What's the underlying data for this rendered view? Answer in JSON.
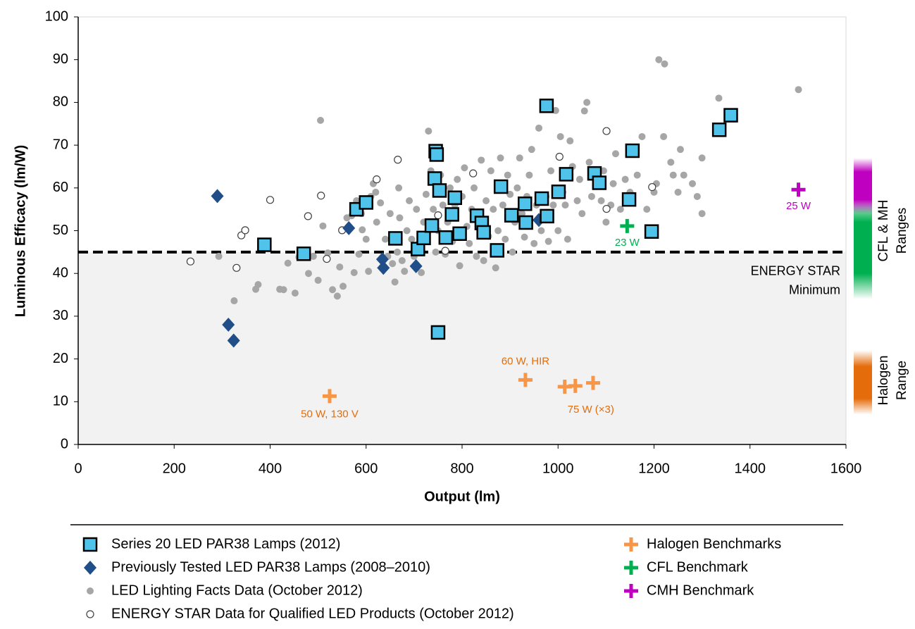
{
  "chart_data": {
    "type": "scatter",
    "x_label": "Output (lm)",
    "y_label": "Luminous Efficacy (lm/W)",
    "xlim": [
      0,
      1600
    ],
    "ylim": [
      0,
      100
    ],
    "xticks": [
      0,
      200,
      400,
      600,
      800,
      1000,
      1200,
      1400,
      1600
    ],
    "yticks": [
      0,
      10,
      20,
      30,
      40,
      50,
      60,
      70,
      80,
      90,
      100
    ],
    "threshold": {
      "value": 45,
      "lines": [
        "ENERGY STAR",
        "Minimum"
      ],
      "shade": "#f2f2f2"
    },
    "range_bands": [
      {
        "color": "#00b050",
        "lo": 34,
        "hi": 58
      },
      {
        "color": "#c000c0",
        "lo": 54,
        "hi": 67
      },
      {
        "color": "#e46c0a",
        "lo": 7,
        "hi": 22
      }
    ],
    "range_labels": [
      {
        "lines": [
          "CFL & MH",
          "Ranges"
        ]
      },
      {
        "lines": [
          "Halogen",
          "Range"
        ]
      }
    ],
    "series": [
      {
        "name": "LED Lighting Facts Data (October 2012)",
        "marker": "circle",
        "color": "#a6a6a6",
        "x": [
          293,
          325,
          375,
          370,
          420,
          428,
          452,
          437,
          460,
          480,
          490,
          500,
          505,
          510,
          520,
          530,
          540,
          545,
          552,
          560,
          570,
          575,
          580,
          585,
          590,
          592,
          600,
          605,
          610,
          615,
          620,
          622,
          630,
          640,
          645,
          650,
          655,
          660,
          665,
          668,
          670,
          675,
          680,
          685,
          690,
          695,
          700,
          705,
          710,
          715,
          720,
          725,
          730,
          735,
          740,
          745,
          750,
          755,
          760,
          765,
          770,
          775,
          780,
          785,
          790,
          795,
          800,
          805,
          810,
          815,
          820,
          825,
          830,
          835,
          840,
          845,
          850,
          855,
          860,
          865,
          870,
          875,
          880,
          885,
          890,
          895,
          900,
          905,
          910,
          915,
          920,
          925,
          930,
          935,
          940,
          945,
          950,
          955,
          960,
          965,
          970,
          975,
          980,
          985,
          990,
          995,
          1000,
          1005,
          1010,
          1015,
          1020,
          1025,
          1030,
          1040,
          1045,
          1050,
          1055,
          1060,
          1065,
          1070,
          1080,
          1090,
          1095,
          1100,
          1110,
          1115,
          1120,
          1130,
          1140,
          1150,
          1165,
          1175,
          1185,
          1200,
          1205,
          1210,
          1222,
          1220,
          1235,
          1240,
          1250,
          1255,
          1262,
          1280,
          1290,
          1300,
          1300,
          1335,
          1501
        ],
        "values": [
          44,
          33.6,
          37.4,
          36.3,
          36.3,
          36.2,
          35.4,
          42.4,
          43.8,
          40,
          44,
          38.4,
          75.8,
          51.1,
          44.8,
          36.2,
          34.7,
          41.5,
          37,
          53,
          53.5,
          40.2,
          57,
          44.5,
          54,
          50.2,
          48,
          40.5,
          58,
          61,
          59,
          52,
          56.5,
          48,
          44,
          54,
          42.3,
          38,
          45,
          60,
          53,
          43,
          40.5,
          50,
          57,
          48,
          44,
          55,
          47,
          40.2,
          52,
          58.5,
          73.3,
          64,
          55,
          45,
          50,
          63,
          56,
          44.5,
          52,
          60,
          47.5,
          56,
          62,
          41.8,
          58,
          64.7,
          51,
          47,
          55,
          60,
          44,
          53,
          66.5,
          43,
          57,
          48.7,
          64,
          55,
          41.3,
          50,
          67,
          56,
          48,
          63,
          58.5,
          45,
          52,
          60,
          67,
          54,
          48.5,
          58,
          63,
          69,
          47,
          56,
          74,
          50,
          79.5,
          58,
          47.5,
          64,
          56,
          78.1,
          50,
          72,
          59,
          56,
          48,
          71,
          65,
          57,
          62,
          54,
          78,
          80,
          66,
          58,
          63,
          57,
          64,
          52,
          56,
          61,
          68,
          55,
          62,
          59,
          63,
          72,
          55,
          59,
          61,
          90,
          89,
          72,
          66,
          63,
          59,
          69,
          63,
          61,
          58,
          67,
          54,
          81,
          83
        ]
      },
      {
        "name": "ENERGY STAR Data for Qualified LED Products (October 2012)",
        "marker": "open-circle",
        "color": "#404040",
        "x": [
          234,
          330,
          340,
          348,
          400,
          479,
          506,
          518,
          550,
          622,
          666,
          765,
          823,
          1003,
          1101,
          1101,
          1196,
          750,
          843
        ],
        "values": [
          42.8,
          41.3,
          48.9,
          50.1,
          57.2,
          53.4,
          58.2,
          43.4,
          50.1,
          62,
          66.6,
          45.3,
          63.4,
          67.3,
          73.3,
          55.1,
          60.2,
          53.6,
          50
        ]
      },
      {
        "name": "Previously Tested  LED PAR38 Lamps (2008–2010)",
        "marker": "diamond",
        "color": "#1f4e89",
        "x": [
          290,
          313,
          324,
          564,
          634,
          636,
          704,
          960
        ],
        "values": [
          58.1,
          28,
          24.3,
          50.6,
          43.3,
          41.3,
          41.7,
          52.5
        ]
      },
      {
        "name": "Series 20 LED PAR38 Lamps (2012)",
        "marker": "square",
        "color": "#4fc3ea",
        "x": [
          388,
          470,
          580,
          600,
          661,
          708,
          720,
          737,
          743,
          745,
          747,
          753,
          750,
          766,
          779,
          785,
          795,
          831,
          841,
          845,
          873,
          881,
          903,
          931,
          933,
          966,
          976,
          977,
          1001,
          1017,
          1076,
          1086,
          1148,
          1155,
          1195,
          1336,
          1360
        ],
        "values": [
          46.7,
          44.6,
          55,
          56.6,
          48.2,
          45.7,
          48.3,
          51.2,
          62.2,
          68.6,
          67.8,
          59.4,
          26.2,
          48.4,
          53.8,
          57.7,
          49.3,
          53.5,
          51.8,
          49.6,
          45.4,
          60.3,
          53.6,
          56.3,
          51.9,
          57.5,
          79.2,
          53.4,
          59.1,
          63.2,
          63.4,
          61.2,
          57.3,
          68.7,
          49.8,
          73.6,
          77
        ]
      },
      {
        "name": "Halogen Benchmarks",
        "marker": "plus",
        "color": "#f79646",
        "label_color": "#e46c0a",
        "x": [
          524,
          932,
          1014,
          1036,
          1073
        ],
        "values": [
          11.3,
          15.1,
          13.5,
          13.7,
          14.4
        ],
        "point_labels": [
          "50 W, 130 V",
          "60 W, HIR",
          null,
          "75 W (×3)",
          null
        ]
      },
      {
        "name": "CFL Benchmark",
        "marker": "plus",
        "color": "#00b050",
        "label_color": "#00b050",
        "x": [
          1144
        ],
        "values": [
          51.1
        ],
        "point_labels": [
          "23 W"
        ]
      },
      {
        "name": "CMH Benchmark",
        "marker": "plus",
        "color": "#c000c0",
        "label_color": "#c000c0",
        "x": [
          1501
        ],
        "values": [
          59.6
        ],
        "point_labels": [
          "25 W"
        ]
      }
    ],
    "legend_order": [
      3,
      2,
      0,
      1,
      4,
      5,
      6
    ]
  }
}
